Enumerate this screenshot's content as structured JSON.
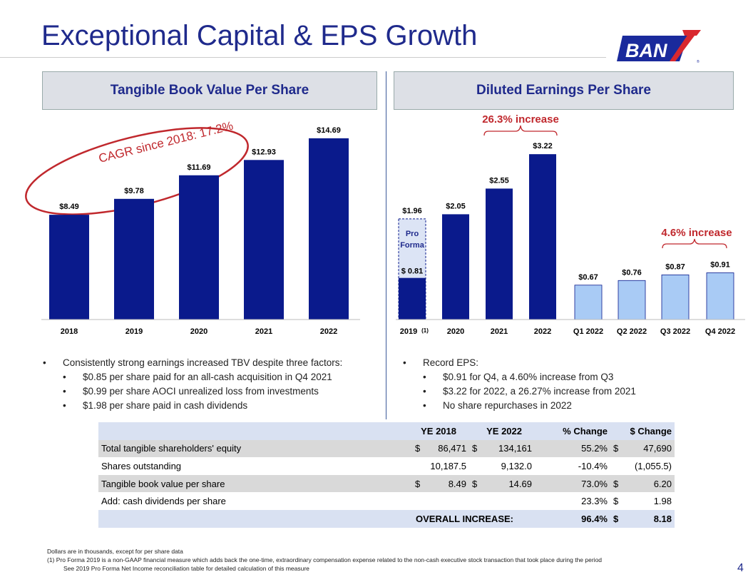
{
  "title": "Exceptional Capital & EPS Growth",
  "logo_text": "BANK7",
  "page_number": "4",
  "left_panel": {
    "header": "Tangible Book Value Per Share",
    "cagr": "CAGR since 2018: 17.2%",
    "bullets": {
      "main": "Consistently strong earnings increased TBV despite three factors:",
      "sub": [
        "$0.85 per share paid for an all-cash acquisition in Q4 2021",
        "$0.99 per share AOCI unrealized loss from investments",
        "$1.98 per share paid in cash dividends"
      ]
    }
  },
  "right_panel": {
    "header": "Diluted Earnings Per Share",
    "annotation_annual": "26.3% increase",
    "annotation_quarterly": "4.6% increase",
    "pro_forma_label": "Pro Forma",
    "pro_forma_total_label": "$1.96",
    "pro_forma_base_label": "$ 0.81",
    "footnote_marker": "(1)",
    "bullets": {
      "main": "Record EPS:",
      "sub": [
        "$0.91 for Q4, a 4.60% increase from Q3",
        "$3.22 for 2022, a 26.27% increase from 2021",
        "No share repurchases in 2022"
      ]
    }
  },
  "chart_data": [
    {
      "type": "bar",
      "categories": [
        "2018",
        "2019",
        "2020",
        "2021",
        "2022"
      ],
      "values": [
        8.49,
        9.78,
        11.69,
        12.93,
        14.69
      ],
      "labels": [
        "$8.49",
        "$9.78",
        "$11.69",
        "$12.93",
        "$14.69"
      ],
      "color": "#0a1a8c"
    },
    {
      "type": "bar",
      "categories": [
        "2019",
        "2020",
        "2021",
        "2022",
        "Q1 2022",
        "Q2 2022",
        "Q3 2022",
        "Q4 2022"
      ],
      "values": [
        0.81,
        2.05,
        2.55,
        3.22,
        0.67,
        0.76,
        0.87,
        0.91
      ],
      "pro_forma_2019": 1.96,
      "labels": [
        "",
        "$2.05",
        "$2.55",
        "$3.22",
        "$0.67",
        "$0.76",
        "$0.87",
        "$0.91"
      ],
      "colors": {
        "annual": "#0a1a8c",
        "quarterly": "#a9cbf5",
        "pro_forma": "#dce4f5"
      }
    }
  ],
  "table": {
    "headers": [
      "",
      "YE 2018",
      "YE 2022",
      "% Change",
      "$ Change"
    ],
    "rows": [
      {
        "label": "Total tangible shareholders' equity",
        "c1": "$",
        "v1": "86,471",
        "c2": "$",
        "v2": "134,161",
        "pct": "55.2%",
        "c3": "$",
        "v3": "47,690"
      },
      {
        "label": "Shares outstanding",
        "c1": "",
        "v1": "10,187.5",
        "c2": "",
        "v2": "9,132.0",
        "pct": "-10.4%",
        "c3": "",
        "v3": "(1,055.5)"
      },
      {
        "label": "Tangible book value per share",
        "c1": "$",
        "v1": "8.49",
        "c2": "$",
        "v2": "14.69",
        "pct": "73.0%",
        "c3": "$",
        "v3": "6.20"
      },
      {
        "label": "Add: cash dividends per share",
        "c1": "",
        "v1": "",
        "c2": "",
        "v2": "",
        "pct": "23.3%",
        "c3": "$",
        "v3": "1.98"
      }
    ],
    "total": {
      "label": "OVERALL INCREASE:",
      "pct": "96.4%",
      "c3": "$",
      "v3": "8.18"
    }
  },
  "notes": [
    "Dollars are in thousands, except for per share data",
    "(1)   Pro Forma 2019 is a non-GAAP financial measure which adds back the one-time, extraordinary compensation expense related to the non-cash executive stock transaction that took place during the period",
    "See 2019 Pro Forma Net Income reconciliation table for detailed calculation of this measure"
  ]
}
